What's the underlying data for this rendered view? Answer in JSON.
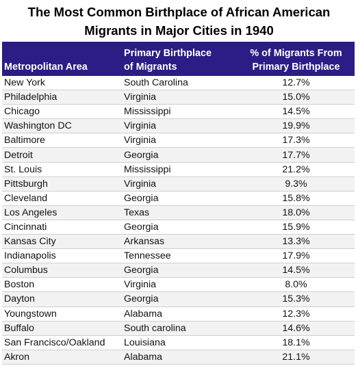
{
  "title_line1": "The Most Common Birthplace of African American",
  "title_line2": "Migrants in Major Cities in 1940",
  "headers": {
    "area": "Metropolitan Area",
    "birthplace_line1": "Primary Birthplace",
    "birthplace_line2": "of Migrants",
    "pct_line1": "% of Migrants From",
    "pct_line2": "Primary Birthplace"
  },
  "header_color": "#2a1d85",
  "chart_data": {
    "type": "table",
    "columns": [
      "Metropolitan Area",
      "Primary Birthplace of Migrants",
      "% of Migrants From Primary Birthplace"
    ],
    "rows": [
      [
        "New York",
        "South Carolina",
        "12.7%"
      ],
      [
        "Philadelphia",
        "Virginia",
        "15.0%"
      ],
      [
        "Chicago",
        "Mississippi",
        "14.5%"
      ],
      [
        "Washington DC",
        "Virginia",
        "19.9%"
      ],
      [
        "Baltimore",
        "Virginia",
        "17.3%"
      ],
      [
        "Detroit",
        "Georgia",
        "17.7%"
      ],
      [
        "St. Louis",
        "Mississippi",
        "21.2%"
      ],
      [
        "Pittsburgh",
        "Virginia",
        "9.3%"
      ],
      [
        "Cleveland",
        "Georgia",
        "15.8%"
      ],
      [
        "Los Angeles",
        "Texas",
        "18.0%"
      ],
      [
        "Cincinnati",
        "Georgia",
        "15.9%"
      ],
      [
        "Kansas City",
        "Arkansas",
        "13.3%"
      ],
      [
        "Indianapolis",
        "Tennessee",
        "17.9%"
      ],
      [
        "Columbus",
        "Georgia",
        "14.5%"
      ],
      [
        "Boston",
        "Virginia",
        "8.0%"
      ],
      [
        "Dayton",
        "Georgia",
        "15.3%"
      ],
      [
        "Youngstown",
        "Alabama",
        "12.3%"
      ],
      [
        "Buffalo",
        "South carolina",
        "14.6%"
      ],
      [
        "San Francisco/Oakland",
        "Louisiana",
        "18.1%"
      ],
      [
        "Akron",
        "Alabama",
        "21.1%"
      ]
    ]
  }
}
